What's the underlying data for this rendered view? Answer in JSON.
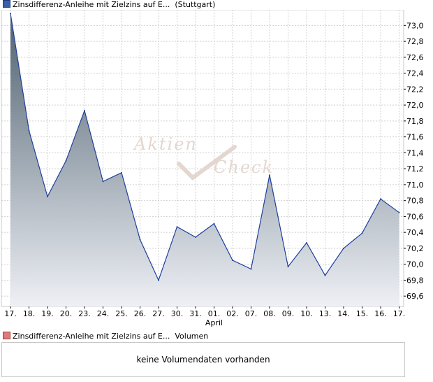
{
  "main_legend": {
    "label": "Zinsdifferenz-Anleihe mit Zielzins auf E...",
    "exchange": "(Stuttgart)"
  },
  "volume_legend": {
    "label": "Zinsdifferenz-Anleihe mit Zielzins auf E...",
    "suffix": "Volumen"
  },
  "volume_panel": {
    "message": "keine Volumendaten vorhanden"
  },
  "watermark": {
    "line1": "Aktien",
    "line2": "Check"
  },
  "chart_data": {
    "type": "area",
    "categories": [
      "17.",
      "18.",
      "19.",
      "20.",
      "23.",
      "24.",
      "25.",
      "26.",
      "27.",
      "30.",
      "31.",
      "01.",
      "02.",
      "07.",
      "08.",
      "09.",
      "10.",
      "13.",
      "14.",
      "15.",
      "16.",
      "17."
    ],
    "month_label": {
      "index": 11,
      "text": "April"
    },
    "values": [
      73.15,
      71.68,
      70.85,
      71.3,
      71.93,
      71.04,
      71.15,
      70.31,
      69.8,
      70.47,
      70.34,
      70.51,
      70.05,
      69.94,
      71.12,
      69.97,
      70.27,
      69.86,
      70.2,
      70.39,
      70.82,
      70.65
    ],
    "ylim": [
      69.47,
      73.17
    ],
    "yticks": [
      69.6,
      69.8,
      70.0,
      70.2,
      70.4,
      70.6,
      70.8,
      71.0,
      71.2,
      71.4,
      71.6,
      71.8,
      72.0,
      72.2,
      72.4,
      72.6,
      72.8,
      73.0
    ],
    "grid": true,
    "colors": {
      "line": "#1f3f9f",
      "fill_top": "#4f6170",
      "fill_bottom": "#eef0f5",
      "grid": "#d0d0d0"
    }
  }
}
